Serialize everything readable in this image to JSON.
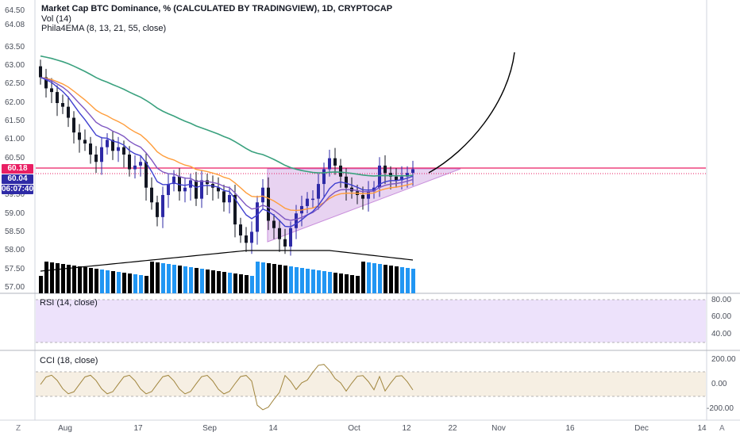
{
  "legend": {
    "title": "Market Cap BTC Dominance, % (CALCULATED BY TRADINGVIEW), 1D, CRYPTOCAP",
    "vol": "Vol (14)",
    "ema": "Phila4EMA (8, 13, 21, 55, close)"
  },
  "price_axis": {
    "labels": [
      "64.50",
      "64.08",
      "63.50",
      "63.00",
      "62.50",
      "62.00",
      "61.50",
      "61.00",
      "60.50",
      "59.50",
      "59.00",
      "58.50",
      "58.00",
      "57.50",
      "57.00"
    ],
    "tag_last": "60.18",
    "tag_second": "60.04",
    "tag_countdown": "06:07:40"
  },
  "rsi": {
    "label": "RSI (14, close)",
    "axis": [
      "80.00",
      "60.00",
      "40.00"
    ]
  },
  "cci": {
    "label": "CCI (18, close)",
    "axis": [
      "200.00",
      "0.00",
      "-200.00"
    ]
  },
  "time_axis": [
    "Aug",
    "17",
    "Sep",
    "14",
    "Oct",
    "12",
    "22",
    "Nov",
    "16",
    "Dec",
    "14"
  ],
  "corners": {
    "bottom_left": "Z",
    "bottom_right": "A"
  },
  "colors": {
    "up": "#2e2aa6",
    "down": "#131722",
    "vol_up": "#2196f3",
    "vol_down": "#000000",
    "ema8": "#7e57c2",
    "ema13": "#3f3fcf",
    "ema21": "#ff9d3b",
    "ema55": "#3aa17e",
    "red_line": "#e91e63",
    "rsi_band": "#ede2fb",
    "cci_band": "#f6efe3",
    "cci_line": "#a0853d",
    "triangle": "#d9b6e8"
  }
}
